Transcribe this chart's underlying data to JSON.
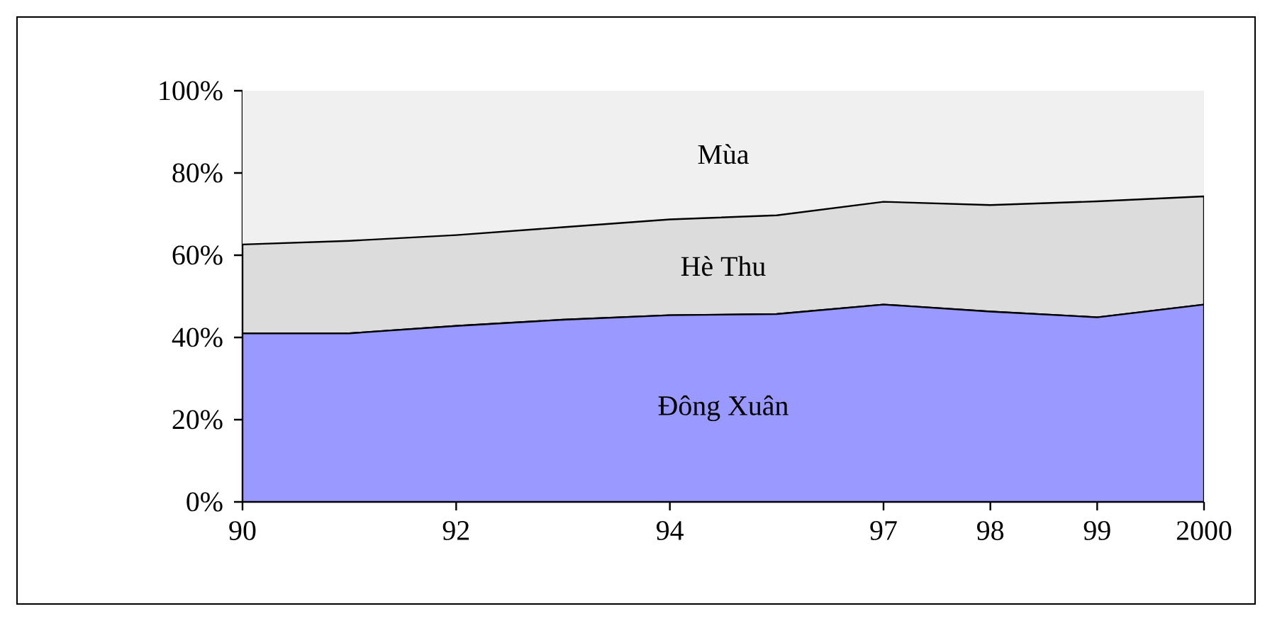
{
  "chart_data": {
    "type": "area",
    "stacked": true,
    "categories": [
      "90",
      null,
      "92",
      null,
      "94",
      null,
      "97",
      "98",
      "99",
      "2000"
    ],
    "series": [
      {
        "name": "Đông Xuân",
        "color": "#9999ff",
        "values": [
          41,
          41,
          42.8,
          44.3,
          45.4,
          45.7,
          48,
          46.3,
          44.9,
          48
        ]
      },
      {
        "name": "Hè Thu",
        "color": "#dcdcdc",
        "values": [
          21.6,
          22.5,
          22.1,
          22.5,
          23.3,
          24,
          25,
          25.9,
          28.2,
          26.3
        ]
      },
      {
        "name": "Mùa",
        "color": "#f0f0f0",
        "values": [
          37.4,
          36.5,
          35.1,
          33.2,
          31.3,
          30.3,
          27,
          27.8,
          26.9,
          25.7
        ]
      }
    ],
    "ylim": [
      0,
      100
    ],
    "yticks": [
      {
        "value": 0,
        "label": "0%"
      },
      {
        "value": 20,
        "label": "20%"
      },
      {
        "value": 40,
        "label": "40%"
      },
      {
        "value": 60,
        "label": "60%"
      },
      {
        "value": 80,
        "label": "80%"
      },
      {
        "value": 100,
        "label": "100%"
      }
    ],
    "grid": false,
    "legend": false
  }
}
